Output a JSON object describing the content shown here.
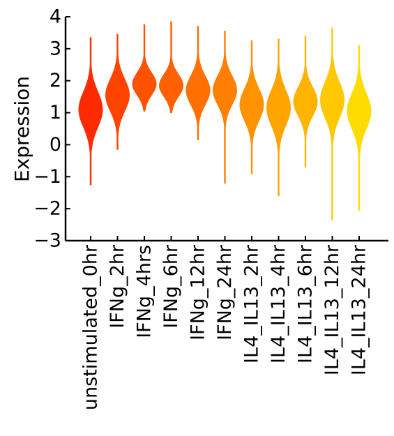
{
  "chart_data": {
    "type": "violin",
    "ylabel": "Expression",
    "ylim": [
      -3,
      4
    ],
    "yticks": [
      4,
      3,
      2,
      1,
      0,
      -1,
      -2,
      -3
    ],
    "ytick_labels": [
      "4",
      "3",
      "2",
      "1",
      "0",
      "−1",
      "−2",
      "−3"
    ],
    "grid": false,
    "categories": [
      "unstimulated_0hr",
      "IFNg_2hr",
      "IFNg_4hrs",
      "IFNg_6hr",
      "IFNg_12hr",
      "IFNg_24hr",
      "IL4_IL13_2hr",
      "IL4_IL13_4hr",
      "IL4_IL13_6hr",
      "IL4_IL13_12hr",
      "IL4_IL13_24hr"
    ],
    "series": [
      {
        "min": -1.25,
        "max": 3.35,
        "mode": 1.1,
        "spread": 0.55,
        "color": "#ff2a00"
      },
      {
        "min": -0.15,
        "max": 3.45,
        "mode": 1.55,
        "spread": 0.5,
        "color": "#ff4400"
      },
      {
        "min": 1.05,
        "max": 3.75,
        "mode": 1.9,
        "spread": 0.35,
        "color": "#ff5200"
      },
      {
        "min": 1.0,
        "max": 3.85,
        "mode": 1.85,
        "spread": 0.35,
        "color": "#ff6000"
      },
      {
        "min": 0.15,
        "max": 3.7,
        "mode": 1.7,
        "spread": 0.45,
        "color": "#ff7000"
      },
      {
        "min": -1.2,
        "max": 3.55,
        "mode": 1.7,
        "spread": 0.45,
        "color": "#ff7f00"
      },
      {
        "min": -0.9,
        "max": 3.25,
        "mode": 1.25,
        "spread": 0.5,
        "color": "#ff9200"
      },
      {
        "min": -1.6,
        "max": 3.3,
        "mode": 1.15,
        "spread": 0.55,
        "color": "#ffa400"
      },
      {
        "min": -0.7,
        "max": 3.4,
        "mode": 1.35,
        "spread": 0.45,
        "color": "#ffb400"
      },
      {
        "min": -2.35,
        "max": 3.65,
        "mode": 1.4,
        "spread": 0.55,
        "color": "#ffc800"
      },
      {
        "min": -2.05,
        "max": 3.1,
        "mode": 1.05,
        "spread": 0.55,
        "color": "#ffdc00"
      }
    ]
  }
}
